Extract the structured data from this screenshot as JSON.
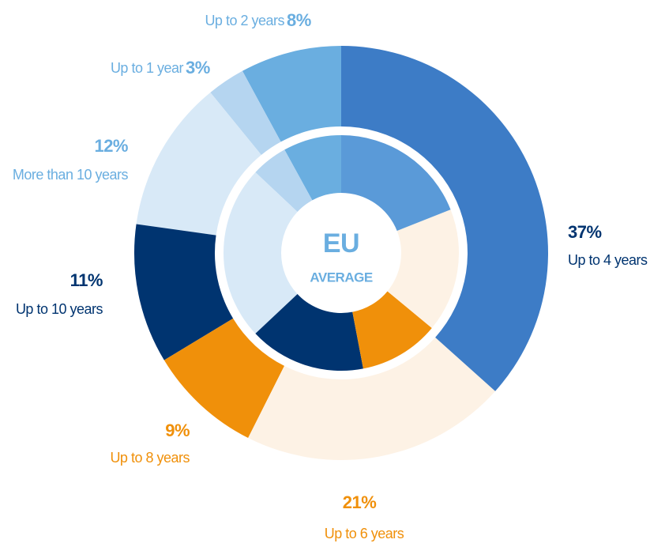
{
  "chart_data": [
    {
      "type": "donut",
      "categories": [
        "Up to 4 years",
        "Up to 6 years",
        "Up to 8 years",
        "Up to 10 years",
        "More than 10 years",
        "Up to 1 year",
        "Up to 2 years"
      ],
      "values": [
        37,
        21,
        9,
        11,
        12,
        3,
        8
      ],
      "value_labels": [
        "37%",
        "21%",
        "9%",
        "11%",
        "12%",
        "3%",
        "8%"
      ],
      "colors": [
        "#3d7cc6",
        "#fdf2e5",
        "#f0900a",
        "#003470",
        "#d8e9f7",
        "#b5d5f0",
        "#6aaee0"
      ],
      "label_colors": [
        "#003470",
        "#f0900a",
        "#f0900a",
        "#003470",
        "#6aaee0",
        "#6aaee0",
        "#6aaee0"
      ]
    },
    {
      "type": "donut",
      "title": "EU",
      "subtitle": "AVERAGE",
      "values": [
        19,
        17,
        11,
        16,
        24,
        5,
        8
      ],
      "value_labels": [
        "19%",
        "17%",
        "11%",
        "16%",
        "24%",
        "5%",
        "8%"
      ],
      "colors": [
        "#5a9ad8",
        "#fdf2e5",
        "#f0900a",
        "#003470",
        "#d8e9f7",
        "#b5d5f0",
        "#6aaee0"
      ],
      "label_colors": [
        "#ffffff",
        "#f0900a",
        "#ffffff",
        "#ffffff",
        "#003470",
        "#003470",
        "#003470"
      ]
    }
  ]
}
